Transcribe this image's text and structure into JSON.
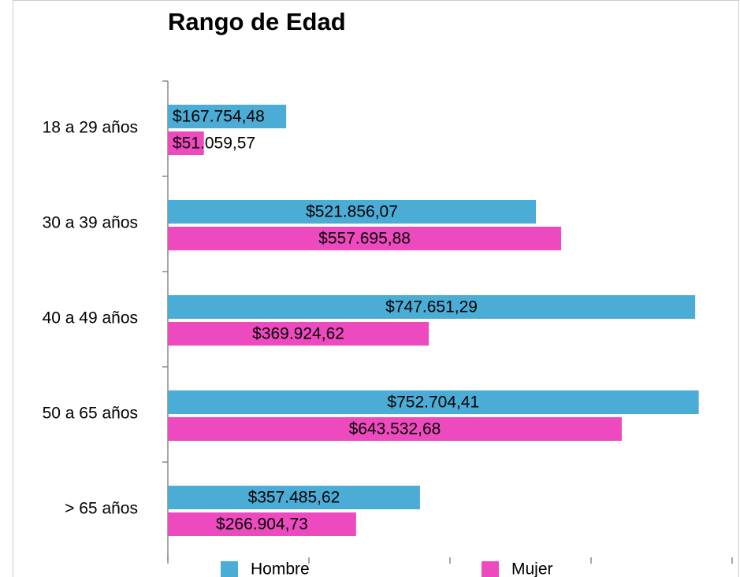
{
  "chart_data": {
    "type": "bar",
    "orientation": "horizontal",
    "title": "Rango de Edad",
    "categories": [
      "18 a 29 años",
      "30 a 39 años",
      "40 a 49 años",
      "50 a 65 años",
      "> 65 años"
    ],
    "series": [
      {
        "name": "Hombre",
        "color": "#4bacd6",
        "values": [
          167754.48,
          521856.07,
          747651.29,
          752704.41,
          357485.62
        ],
        "value_labels": [
          "$167.754,48",
          "$521.856,07",
          "$747.651,29",
          "$752.704,41",
          "$357.485,62"
        ]
      },
      {
        "name": "Mujer",
        "color": "#ee4ac0",
        "values": [
          51059.57,
          557695.88,
          369924.62,
          643532.68,
          266904.73
        ],
        "value_labels": [
          "$51.059,57",
          "$557.695,88",
          "$369.924,62",
          "$643.532,68",
          "$266.904,73"
        ]
      }
    ],
    "xlim": [
      0,
      800000
    ],
    "xticks": [
      0,
      200000,
      400000,
      600000,
      800000
    ],
    "legend": "bottom"
  }
}
